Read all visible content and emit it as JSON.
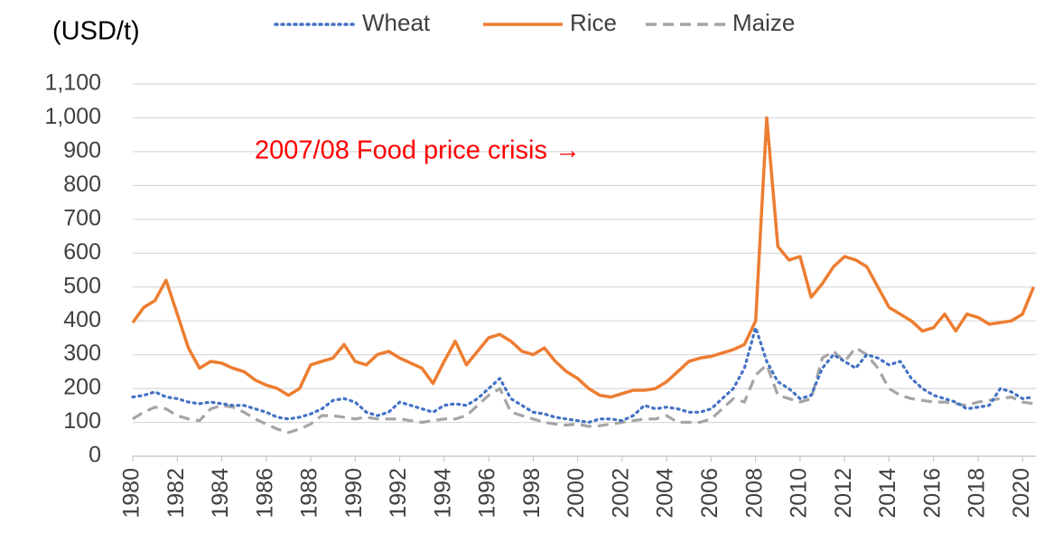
{
  "chart_data": {
    "type": "line",
    "y_label": "(USD/t)",
    "annotation": "2007/08 Food price crisis →",
    "x": [
      1980,
      1980.5,
      1981,
      1981.5,
      1982,
      1982.5,
      1983,
      1983.5,
      1984,
      1984.5,
      1985,
      1985.5,
      1986,
      1986.5,
      1987,
      1987.5,
      1988,
      1988.5,
      1989,
      1989.5,
      1990,
      1990.5,
      1991,
      1991.5,
      1992,
      1992.5,
      1993,
      1993.5,
      1994,
      1994.5,
      1995,
      1995.5,
      1996,
      1996.5,
      1997,
      1997.5,
      1998,
      1998.5,
      1999,
      1999.5,
      2000,
      2000.5,
      2001,
      2001.5,
      2002,
      2002.5,
      2003,
      2003.5,
      2004,
      2004.5,
      2005,
      2005.5,
      2006,
      2006.5,
      2007,
      2007.5,
      2008,
      2008.5,
      2009,
      2009.5,
      2010,
      2010.5,
      2011,
      2011.5,
      2012,
      2012.5,
      2013,
      2013.5,
      2014,
      2014.5,
      2015,
      2015.5,
      2016,
      2016.5,
      2017,
      2017.5,
      2018,
      2018.5,
      2019,
      2019.5,
      2020,
      2020.5
    ],
    "series": [
      {
        "name": "Wheat",
        "color": "#4472c4",
        "style": "dotted",
        "values": [
          175,
          180,
          190,
          175,
          170,
          160,
          155,
          160,
          155,
          150,
          150,
          140,
          130,
          115,
          110,
          115,
          125,
          140,
          165,
          170,
          160,
          130,
          120,
          130,
          160,
          150,
          140,
          130,
          150,
          155,
          150,
          170,
          200,
          230,
          170,
          150,
          130,
          125,
          115,
          110,
          105,
          100,
          110,
          110,
          105,
          120,
          150,
          140,
          145,
          140,
          130,
          130,
          140,
          170,
          200,
          260,
          380,
          280,
          220,
          200,
          170,
          180,
          260,
          300,
          280,
          260,
          300,
          290,
          270,
          280,
          230,
          200,
          180,
          170,
          160,
          140,
          145,
          150,
          200,
          190,
          170,
          175
        ]
      },
      {
        "name": "Rice",
        "color": "#ed7d31",
        "style": "solid",
        "values": [
          395,
          440,
          460,
          520,
          420,
          320,
          260,
          280,
          275,
          260,
          250,
          225,
          210,
          200,
          180,
          200,
          270,
          280,
          290,
          330,
          280,
          270,
          300,
          310,
          290,
          275,
          260,
          215,
          280,
          340,
          270,
          310,
          350,
          360,
          340,
          310,
          300,
          320,
          280,
          250,
          230,
          200,
          180,
          175,
          185,
          195,
          195,
          200,
          220,
          250,
          280,
          290,
          295,
          305,
          315,
          330,
          400,
          1000,
          620,
          580,
          590,
          470,
          510,
          560,
          590,
          580,
          560,
          500,
          440,
          420,
          400,
          370,
          380,
          420,
          370,
          420,
          410,
          390,
          395,
          400,
          420,
          500
        ]
      },
      {
        "name": "Maize",
        "color": "#a5a5a5",
        "style": "dashed",
        "values": [
          110,
          130,
          145,
          140,
          120,
          110,
          105,
          140,
          150,
          145,
          130,
          110,
          95,
          80,
          70,
          80,
          95,
          120,
          120,
          115,
          110,
          115,
          110,
          110,
          110,
          105,
          100,
          105,
          110,
          110,
          120,
          150,
          180,
          200,
          130,
          120,
          110,
          100,
          95,
          92,
          95,
          88,
          90,
          95,
          100,
          105,
          110,
          110,
          120,
          100,
          100,
          100,
          110,
          140,
          170,
          160,
          240,
          270,
          180,
          170,
          160,
          170,
          290,
          310,
          280,
          320,
          300,
          260,
          200,
          180,
          170,
          165,
          160,
          160,
          155,
          150,
          160,
          165,
          170,
          175,
          160,
          155
        ]
      }
    ],
    "xlim": [
      1980,
      2020.6
    ],
    "xticks": [
      1980,
      1982,
      1984,
      1986,
      1988,
      1990,
      1992,
      1994,
      1996,
      1998,
      2000,
      2002,
      2004,
      2006,
      2008,
      2010,
      2012,
      2014,
      2016,
      2018,
      2020
    ],
    "ylim": [
      0,
      1100
    ],
    "yticks": [
      0,
      100,
      200,
      300,
      400,
      500,
      600,
      700,
      800,
      900,
      {
        "value": 1000,
        "label": "1,000"
      },
      {
        "value": 1100,
        "label": "1,100"
      }
    ],
    "grid": true,
    "legend": "top"
  }
}
